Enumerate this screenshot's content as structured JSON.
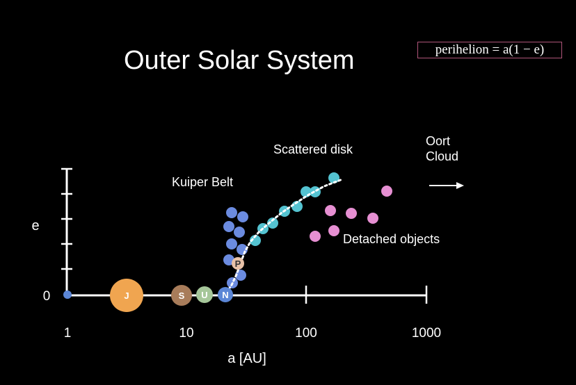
{
  "title": "Outer Solar System",
  "formula": "perihelion = a(1 − e)",
  "axes": {
    "x_label": "a [AU]",
    "y_label": "e",
    "x_ticks": [
      "1",
      "10",
      "100",
      "1000"
    ],
    "y_zero": "0"
  },
  "regions": {
    "kuiper": "Kuiper Belt",
    "scattered": "Scattered disk",
    "detached": "Detached objects",
    "oort_line1": "Oort",
    "oort_line2": "Cloud"
  },
  "planets": [
    {
      "name": "",
      "color": "#5b86d6"
    },
    {
      "name": "J",
      "color": "#f0a550"
    },
    {
      "name": "S",
      "color": "#a87c5a"
    },
    {
      "name": "U",
      "color": "#a6c79a"
    },
    {
      "name": "N",
      "color": "#5b86d6"
    },
    {
      "name": "P",
      "color": "#e8c2a8"
    }
  ],
  "colors": {
    "kuiper": "#6b8be0",
    "scattered": "#54c3d1",
    "detached": "#e68fd2",
    "formula_border": "#b0557a"
  }
}
